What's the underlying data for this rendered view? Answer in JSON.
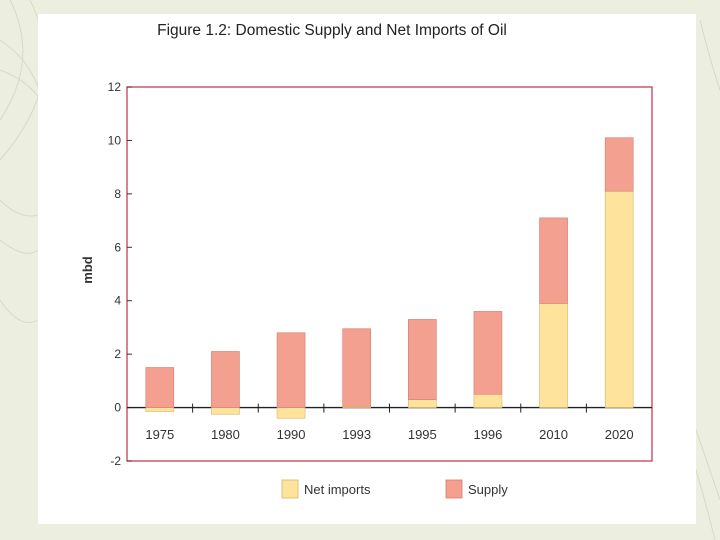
{
  "chart_data": {
    "type": "bar",
    "stacked": true,
    "title": "Figure 1.2: Domestic Supply and Net Imports of Oil",
    "ylabel": "mbd",
    "xlabel": "",
    "ylim": [
      -2,
      12
    ],
    "yticks": [
      -2,
      0,
      2,
      4,
      6,
      8,
      10,
      12
    ],
    "categories": [
      "1975",
      "1980",
      "1990",
      "1993",
      "1995",
      "1996",
      "2010",
      "2020"
    ],
    "series": [
      {
        "name": "Net imports",
        "color": "#fde39c",
        "values": [
          -0.15,
          -0.25,
          -0.4,
          0.05,
          0.3,
          0.5,
          3.9,
          8.1
        ]
      },
      {
        "name": "Supply",
        "color": "#f4a091",
        "values": [
          1.5,
          2.1,
          2.8,
          2.9,
          3.0,
          3.1,
          3.2,
          2.0
        ]
      }
    ],
    "legend": "bottom"
  }
}
